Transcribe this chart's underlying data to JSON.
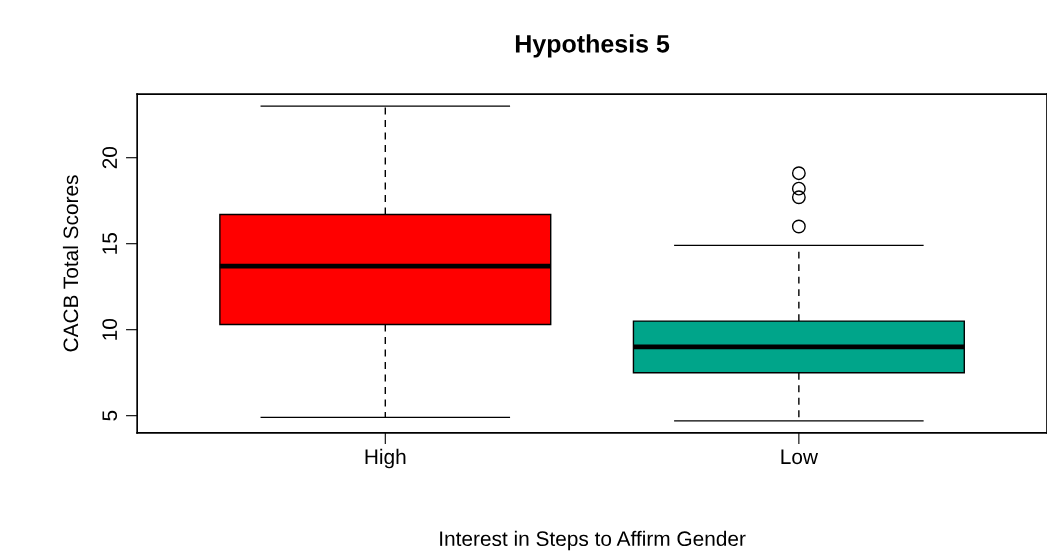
{
  "chart_data": {
    "type": "box",
    "title": "Hypothesis 5",
    "xlabel": "Interest in Steps to Affirm Gender",
    "ylabel": "CACB Total Scores",
    "categories": [
      "High",
      "Low"
    ],
    "colors": [
      "#ff0000",
      "#00a58a"
    ],
    "boxes": [
      {
        "low": 4.9,
        "q1": 10.3,
        "median": 13.7,
        "q3": 16.7,
        "high": 23.0
      },
      {
        "low": 4.7,
        "q1": 7.5,
        "median": 9.0,
        "q3": 10.5,
        "high": 14.9,
        "outliers": [
          16.0,
          17.7,
          18.2,
          19.1
        ]
      }
    ],
    "ylim": [
      4.0,
      23.7
    ],
    "yticks": [
      5,
      10,
      15,
      20
    ],
    "grid": false
  }
}
